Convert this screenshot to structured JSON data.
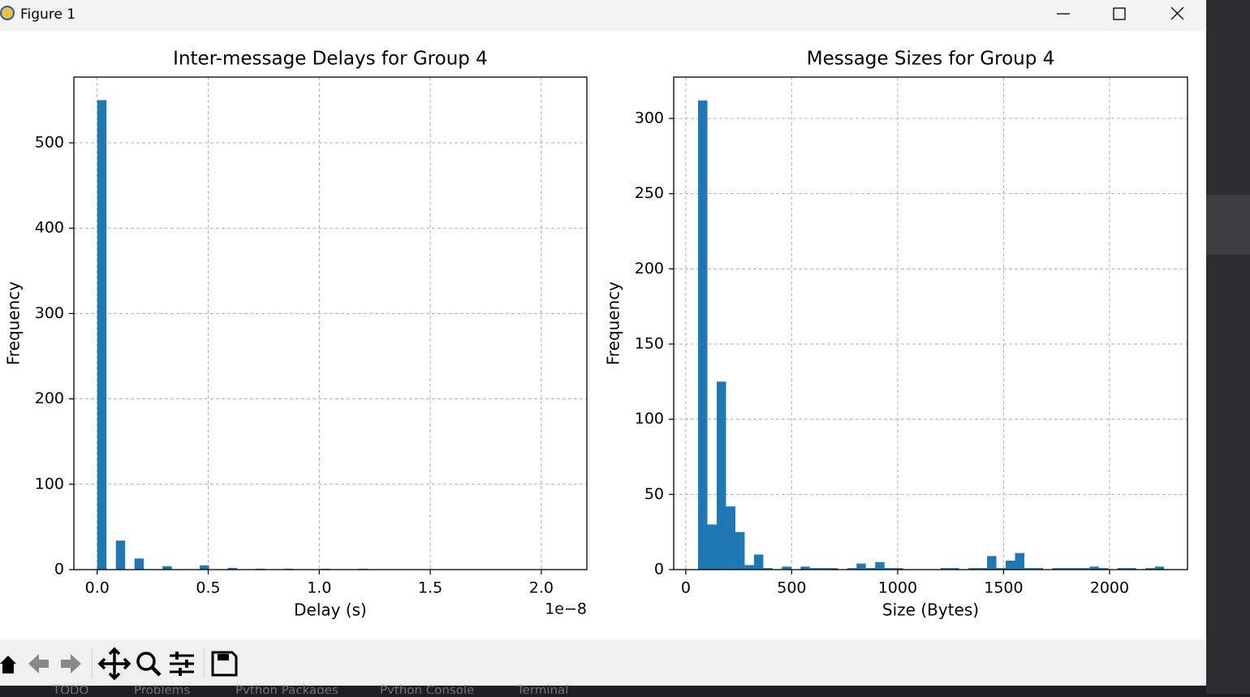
{
  "window": {
    "title": "Figure 1"
  },
  "ide_tabs": [
    "TODO",
    "Problems",
    "Python Packages",
    "Python Console",
    "Terminal"
  ],
  "chart_data": [
    {
      "type": "histogram",
      "title": "Inter-message Delays for Group 4",
      "xlabel": "Delay (s)",
      "ylabel": "Frequency",
      "x_offset_label": "1e−8",
      "color": "#1f77b4",
      "grid": true,
      "bins": [
        0,
        0.042,
        0.084,
        0.126,
        0.168,
        0.21,
        0.252,
        0.294,
        0.336,
        0.378,
        0.42,
        0.462,
        0.504,
        0.546,
        0.588,
        0.63,
        0.672,
        0.714,
        0.756,
        0.798,
        0.84,
        0.882,
        0.924,
        0.966,
        1.008,
        1.05,
        1.092,
        1.134,
        1.176,
        1.218,
        1.26,
        1.302,
        1.344,
        1.386,
        1.428,
        1.47,
        1.512,
        1.554,
        1.596,
        1.638,
        1.68,
        1.722,
        1.764,
        1.806,
        1.848,
        1.89,
        1.932,
        1.974,
        2.016,
        2.058,
        2.1
      ],
      "counts": [
        550,
        0,
        34,
        0,
        13,
        0,
        0,
        4,
        0,
        0,
        0,
        5,
        0,
        0,
        2,
        0,
        0,
        1,
        0,
        0,
        1,
        0,
        0,
        0,
        1,
        0,
        0,
        0,
        1,
        0,
        0,
        0,
        0,
        0,
        0,
        0,
        0,
        0,
        0,
        0,
        0,
        0,
        0,
        0,
        0,
        0,
        0,
        0,
        0,
        0
      ],
      "xlim": [
        -0.105,
        2.205
      ],
      "ylim": [
        0,
        577
      ],
      "xticks": [
        {
          "value": 0,
          "label": "0.0"
        },
        {
          "value": 0.5,
          "label": "0.5"
        },
        {
          "value": 1,
          "label": "1.0"
        },
        {
          "value": 1.5,
          "label": "1.5"
        },
        {
          "value": 2,
          "label": "2.0"
        }
      ],
      "yticks": [
        0,
        100,
        200,
        300,
        400,
        500
      ]
    },
    {
      "type": "histogram",
      "title": "Message Sizes for Group 4",
      "xlabel": "Size (Bytes)",
      "ylabel": "Frequency",
      "color": "#1f77b4",
      "grid": true,
      "bins": [
        58,
        102,
        146,
        190,
        234,
        278,
        322,
        366,
        410,
        454,
        498,
        542,
        586,
        630,
        674,
        718,
        762,
        806,
        850,
        894,
        938,
        982,
        1026,
        1070,
        1114,
        1158,
        1202,
        1246,
        1290,
        1334,
        1378,
        1422,
        1466,
        1510,
        1554,
        1598,
        1642,
        1686,
        1730,
        1774,
        1818,
        1862,
        1906,
        1950,
        1994,
        2038,
        2082,
        2126,
        2170,
        2214,
        2258
      ],
      "counts": [
        312,
        30,
        125,
        42,
        25,
        3,
        10,
        1,
        0,
        2,
        0,
        2,
        1,
        1,
        1,
        0,
        1,
        4,
        1,
        5,
        1,
        1,
        0,
        0,
        0,
        0,
        1,
        1,
        0,
        1,
        1,
        9,
        1,
        6,
        11,
        1,
        1,
        0,
        1,
        1,
        1,
        1,
        2,
        1,
        0,
        1,
        1,
        0,
        1,
        2
      ],
      "xlim": [
        -57,
        2368
      ],
      "ylim": [
        0,
        327.5
      ],
      "xticks": [
        0,
        500,
        1000,
        1500,
        2000
      ],
      "yticks": [
        0,
        50,
        100,
        150,
        200,
        250,
        300
      ]
    }
  ]
}
